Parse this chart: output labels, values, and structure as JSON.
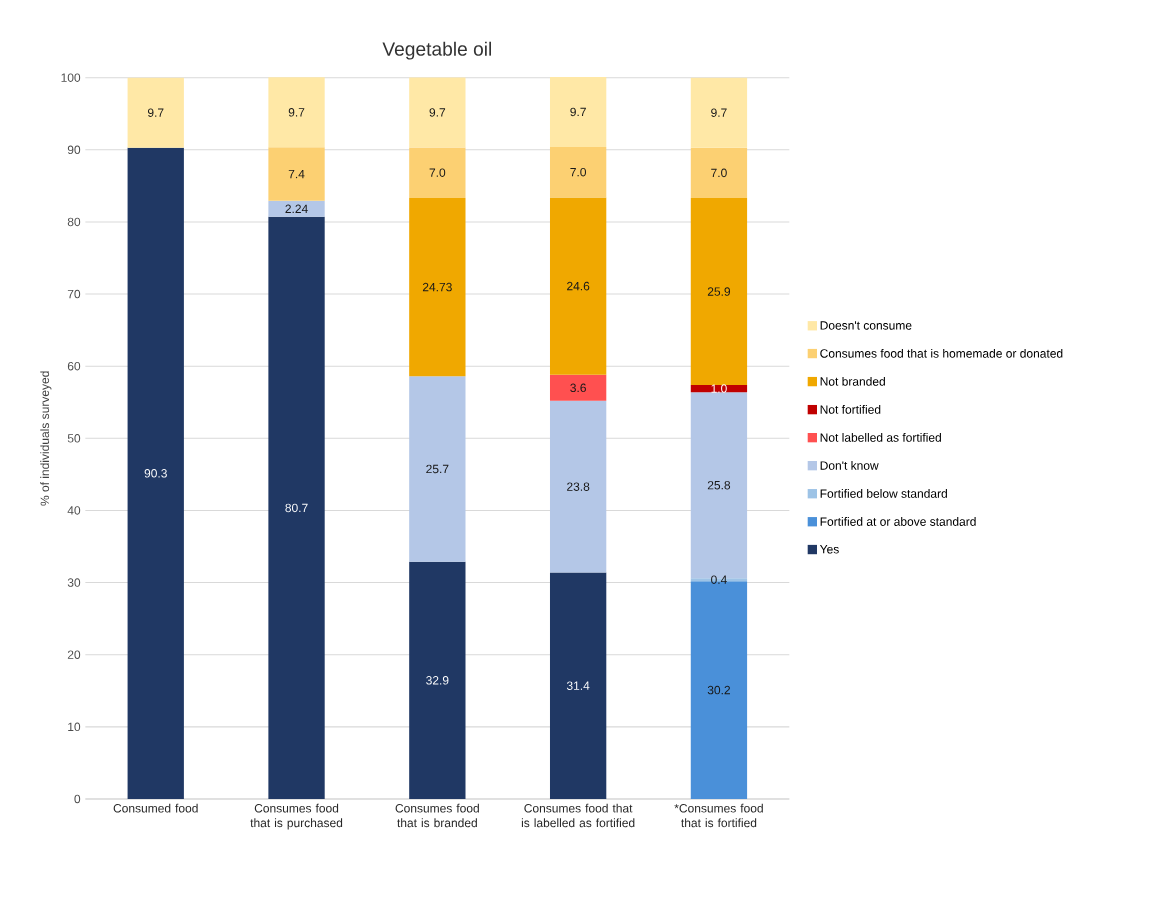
{
  "chart_data": {
    "type": "bar",
    "stacked": true,
    "title": "Vegetable oil",
    "ylabel": "% of individuals surveyed",
    "categories": [
      "Consumed food",
      "Consumes food that is purchased",
      "Consumes food that is branded",
      "Consumes food that is labelled as fortified",
      "*Consumes food that is fortified"
    ],
    "ylim": [
      0,
      100
    ],
    "yticks": [
      0,
      10,
      20,
      30,
      40,
      50,
      60,
      70,
      80,
      90,
      100
    ],
    "grid": "y",
    "legend": "right",
    "series": [
      {
        "name": "Yes",
        "color": "#203864",
        "values": [
          90.3,
          80.7,
          32.9,
          31.4,
          null
        ],
        "value_labels": [
          "90.3",
          "80.7",
          "32.9",
          "31.4",
          null
        ]
      },
      {
        "name": "Fortified at or above standard",
        "color": "#4a90d9",
        "values": [
          null,
          null,
          null,
          null,
          30.2
        ],
        "value_labels": [
          null,
          null,
          null,
          null,
          "30.2"
        ]
      },
      {
        "name": "Fortified below standard",
        "color": "#9dc3e6",
        "values": [
          null,
          null,
          null,
          null,
          0.4
        ],
        "value_labels": [
          null,
          null,
          null,
          null,
          "0.4"
        ]
      },
      {
        "name": "Don't know",
        "color": "#b4c7e7",
        "values": [
          null,
          2.24,
          25.7,
          23.8,
          25.8
        ],
        "value_labels": [
          null,
          "2.24",
          "25.7",
          "23.8",
          "25.8"
        ]
      },
      {
        "name": "Not labelled as fortified",
        "color": "#ff5050",
        "values": [
          null,
          null,
          null,
          3.6,
          null
        ],
        "value_labels": [
          null,
          null,
          null,
          "3.6",
          null
        ]
      },
      {
        "name": "Not fortified",
        "color": "#c00000",
        "values": [
          null,
          null,
          null,
          null,
          1.0
        ],
        "value_labels": [
          null,
          null,
          null,
          null,
          "1.0"
        ]
      },
      {
        "name": "Not branded",
        "color": "#f0a800",
        "values": [
          null,
          null,
          24.73,
          24.6,
          25.9
        ],
        "value_labels": [
          null,
          null,
          "24.73",
          "24.6",
          "25.9"
        ]
      },
      {
        "name": "Consumes food that is homemade or donated",
        "color": "#fcd072",
        "values": [
          null,
          7.4,
          7.0,
          7.0,
          7.0
        ],
        "value_labels": [
          null,
          "7.4",
          "7.0",
          "7.0",
          "7.0"
        ]
      },
      {
        "name": "Doesn't consume",
        "color": "#ffe8a6",
        "values": [
          9.7,
          9.7,
          9.7,
          9.7,
          9.7
        ],
        "value_labels": [
          "9.7",
          "9.7",
          "9.7",
          "9.7",
          "9.7"
        ]
      }
    ]
  }
}
